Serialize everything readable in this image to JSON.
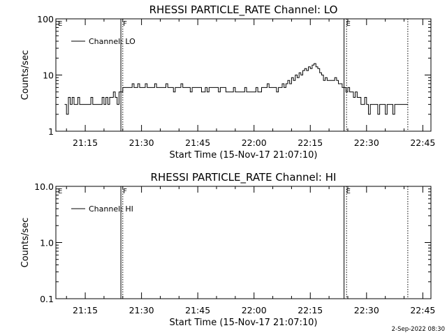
{
  "chart_data": [
    {
      "type": "line",
      "title": "RHESSI PARTICLE_RATE Channel: LO",
      "xlabel": "Start Time (15-Nov-17 21:07:10)",
      "ylabel": "Counts/sec",
      "x_unit": "minutes after 21:07:10",
      "y_scale": "log",
      "ylim": [
        1,
        100
      ],
      "xlim_time": [
        "21:07:10",
        "22:47:10"
      ],
      "x_ticks": [
        "21:15",
        "21:30",
        "21:45",
        "22:00",
        "22:15",
        "22:30",
        "22:45"
      ],
      "y_ticks": [
        "1",
        "10",
        "100"
      ],
      "markers": [
        {
          "label": "E",
          "time": "21:07:10",
          "style": "dotted"
        },
        {
          "label": "F",
          "time": "21:24:30",
          "style": "solid"
        },
        {
          "label": "",
          "time": "21:25:00",
          "style": "dotted"
        },
        {
          "label": "E",
          "time": "22:24:00",
          "style": "solid"
        },
        {
          "label": "",
          "time": "22:24:40",
          "style": "dotted"
        },
        {
          "label": "",
          "time": "22:41:00",
          "style": "dotted"
        }
      ],
      "series": [
        {
          "name": "Channel: LO",
          "points": [
            [
              "21:09:30",
              3
            ],
            [
              "21:10:00",
              2
            ],
            [
              "21:10:30",
              4
            ],
            [
              "21:11:00",
              3
            ],
            [
              "21:11:30",
              4
            ],
            [
              "21:12:00",
              3
            ],
            [
              "21:13:00",
              4
            ],
            [
              "21:13:30",
              3
            ],
            [
              "21:16:00",
              3
            ],
            [
              "21:16:30",
              4
            ],
            [
              "21:17:00",
              3
            ],
            [
              "21:19:00",
              3
            ],
            [
              "21:19:30",
              4
            ],
            [
              "21:20:00",
              3
            ],
            [
              "21:20:30",
              4
            ],
            [
              "21:21:00",
              3
            ],
            [
              "21:21:30",
              4
            ],
            [
              "21:22:00",
              4
            ],
            [
              "21:22:30",
              5
            ],
            [
              "21:23:00",
              4
            ],
            [
              "21:23:30",
              3
            ],
            [
              "21:24:00",
              5
            ],
            [
              "21:24:30",
              5
            ],
            [
              "21:25:00",
              6
            ],
            [
              "21:27:00",
              6
            ],
            [
              "21:27:30",
              7
            ],
            [
              "21:28:00",
              6
            ],
            [
              "21:29:00",
              7
            ],
            [
              "21:29:30",
              6
            ],
            [
              "21:30:30",
              6
            ],
            [
              "21:31:00",
              7
            ],
            [
              "21:31:30",
              6
            ],
            [
              "21:33:00",
              6
            ],
            [
              "21:33:30",
              7
            ],
            [
              "21:34:00",
              6
            ],
            [
              "21:36:00",
              6
            ],
            [
              "21:36:30",
              7
            ],
            [
              "21:37:00",
              6
            ],
            [
              "21:38:30",
              5
            ],
            [
              "21:39:00",
              6
            ],
            [
              "21:40:00",
              6
            ],
            [
              "21:40:30",
              7
            ],
            [
              "21:41:00",
              6
            ],
            [
              "21:42:30",
              6
            ],
            [
              "21:43:00",
              5
            ],
            [
              "21:43:30",
              6
            ],
            [
              "21:45:00",
              6
            ],
            [
              "21:45:30",
              6
            ],
            [
              "21:46:00",
              5
            ],
            [
              "21:47:00",
              6
            ],
            [
              "21:47:30",
              5
            ],
            [
              "21:48:00",
              6
            ],
            [
              "21:50:00",
              6
            ],
            [
              "21:50:30",
              5
            ],
            [
              "21:51:00",
              6
            ],
            [
              "21:52:30",
              5
            ],
            [
              "21:54:00",
              5
            ],
            [
              "21:54:30",
              6
            ],
            [
              "21:55:00",
              5
            ],
            [
              "21:57:00",
              5
            ],
            [
              "21:57:30",
              6
            ],
            [
              "21:58:00",
              5
            ],
            [
              "22:00:00",
              5
            ],
            [
              "22:00:30",
              6
            ],
            [
              "22:01:00",
              5
            ],
            [
              "22:02:00",
              6
            ],
            [
              "22:03:00",
              6
            ],
            [
              "22:03:30",
              7
            ],
            [
              "22:04:00",
              6
            ],
            [
              "22:05:30",
              6
            ],
            [
              "22:06:00",
              5
            ],
            [
              "22:06:30",
              6
            ],
            [
              "22:07:30",
              7
            ],
            [
              "22:08:00",
              6
            ],
            [
              "22:08:30",
              7
            ],
            [
              "22:09:00",
              8
            ],
            [
              "22:09:30",
              7
            ],
            [
              "22:10:00",
              9
            ],
            [
              "22:10:30",
              8
            ],
            [
              "22:11:00",
              10
            ],
            [
              "22:11:30",
              9
            ],
            [
              "22:12:00",
              11
            ],
            [
              "22:12:30",
              10
            ],
            [
              "22:13:00",
              12
            ],
            [
              "22:13:30",
              13
            ],
            [
              "22:14:00",
              12
            ],
            [
              "22:14:30",
              14
            ],
            [
              "22:15:00",
              13
            ],
            [
              "22:15:30",
              15
            ],
            [
              "22:16:00",
              16
            ],
            [
              "22:16:30",
              14
            ],
            [
              "22:17:00",
              13
            ],
            [
              "22:17:30",
              11
            ],
            [
              "22:18:00",
              10
            ],
            [
              "22:18:30",
              8
            ],
            [
              "22:19:00",
              9
            ],
            [
              "22:19:30",
              8
            ],
            [
              "22:20:00",
              8
            ],
            [
              "22:21:00",
              8
            ],
            [
              "22:21:30",
              9
            ],
            [
              "22:22:00",
              8
            ],
            [
              "22:22:30",
              7
            ],
            [
              "22:23:00",
              7
            ],
            [
              "22:23:30",
              6
            ],
            [
              "22:24:00",
              6
            ],
            [
              "22:24:30",
              5
            ],
            [
              "22:25:00",
              6
            ],
            [
              "22:25:30",
              5
            ],
            [
              "22:26:00",
              5
            ],
            [
              "22:26:30",
              4
            ],
            [
              "22:27:00",
              5
            ],
            [
              "22:27:30",
              4
            ],
            [
              "22:28:00",
              4
            ],
            [
              "22:28:30",
              3
            ],
            [
              "22:29:00",
              3
            ],
            [
              "22:29:30",
              4
            ],
            [
              "22:30:00",
              3
            ],
            [
              "22:30:30",
              2
            ],
            [
              "22:31:00",
              3
            ],
            [
              "22:32:00",
              3
            ],
            [
              "22:32:30",
              3
            ],
            [
              "22:33:00",
              2
            ],
            [
              "22:33:30",
              3
            ],
            [
              "22:34:30",
              3
            ],
            [
              "22:35:00",
              2
            ],
            [
              "22:35:30",
              3
            ],
            [
              "22:36:30",
              3
            ],
            [
              "22:37:00",
              2
            ],
            [
              "22:37:30",
              3
            ],
            [
              "22:41:00",
              3
            ]
          ]
        }
      ]
    },
    {
      "type": "line",
      "title": "RHESSI PARTICLE_RATE Channel: HI",
      "xlabel": "Start Time (15-Nov-17 21:07:10)",
      "ylabel": "Counts/sec",
      "y_scale": "log",
      "ylim": [
        0.1,
        10
      ],
      "xlim_time": [
        "21:07:10",
        "22:47:10"
      ],
      "x_ticks": [
        "21:15",
        "21:30",
        "21:45",
        "22:00",
        "22:15",
        "22:30",
        "22:45"
      ],
      "y_ticks": [
        "0.1",
        "1.0",
        "10.0"
      ],
      "markers": [
        {
          "label": "E",
          "time": "21:07:10",
          "style": "dotted"
        },
        {
          "label": "F",
          "time": "21:24:30",
          "style": "solid"
        },
        {
          "label": "",
          "time": "21:25:00",
          "style": "dotted"
        },
        {
          "label": "E",
          "time": "22:24:00",
          "style": "solid"
        },
        {
          "label": "",
          "time": "22:24:40",
          "style": "dotted"
        },
        {
          "label": "",
          "time": "22:41:00",
          "style": "dotted"
        }
      ],
      "series": [
        {
          "name": "Channel: HI",
          "points": []
        }
      ]
    }
  ],
  "footer": {
    "timestamp": "2-Sep-2022 08:30"
  }
}
